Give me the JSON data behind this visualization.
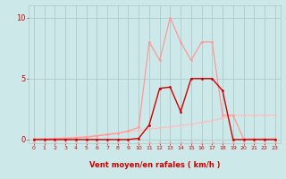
{
  "x_values": [
    0,
    1,
    2,
    3,
    4,
    5,
    6,
    7,
    8,
    9,
    10,
    11,
    12,
    13,
    14,
    15,
    16,
    17,
    18,
    19,
    20,
    21,
    22,
    23
  ],
  "gust_line": [
    0.05,
    0.05,
    0.1,
    0.1,
    0.15,
    0.2,
    0.3,
    0.4,
    0.5,
    0.7,
    1.0,
    8.0,
    6.5,
    10.0,
    8.0,
    6.5,
    8.0,
    8.0,
    2.0,
    2.0,
    0.05,
    0.05,
    0.05,
    0.05
  ],
  "mean_line": [
    0.0,
    0.0,
    0.0,
    0.0,
    0.0,
    0.0,
    0.0,
    0.0,
    0.0,
    0.0,
    0.1,
    1.2,
    4.2,
    4.3,
    2.3,
    5.0,
    5.0,
    5.0,
    4.0,
    0.0,
    0.0,
    0.0,
    0.0,
    0.0
  ],
  "slow_rise_line": [
    0.0,
    0.05,
    0.1,
    0.15,
    0.2,
    0.25,
    0.35,
    0.45,
    0.55,
    0.65,
    0.75,
    0.85,
    0.95,
    1.05,
    1.15,
    1.25,
    1.4,
    1.55,
    1.75,
    2.0,
    2.0,
    2.0,
    2.0,
    2.0
  ],
  "bg_color": "#cce8e8",
  "grid_color": "#aacccc",
  "gust_color": "#ff9999",
  "mean_color": "#cc0000",
  "slow_color": "#ffbbbb",
  "xlabel": "Vent moyen/en rafales ( km/h )",
  "xlabel_color": "#cc0000",
  "tick_color": "#cc0000",
  "yticks": [
    0,
    5,
    10
  ],
  "ylim": [
    -0.3,
    11
  ],
  "xlim": [
    -0.5,
    23.5
  ]
}
